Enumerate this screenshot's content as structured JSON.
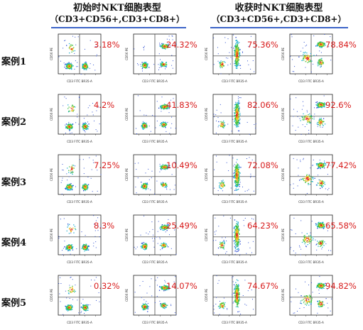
{
  "headers": {
    "initial": {
      "title": "初始时NKT细胞表型",
      "subtitle": "（CD3+CD56+,CD3+CD8+）"
    },
    "harvest": {
      "title": "收获时NKT细胞表型",
      "subtitle": "（CD3+CD56+,CD3+CD8+）"
    }
  },
  "accent_color": "#3b64c8",
  "percent_color": "#d81c1c",
  "axis_labels": {
    "x": "CD3 FITC BR35-A",
    "y": "CD56 PE"
  },
  "cases": [
    {
      "label": "案例1",
      "values": [
        "3.18%",
        "24.32%",
        "75.36%",
        "78.84%"
      ]
    },
    {
      "label": "案例2",
      "values": [
        "4.2%",
        "41.83%",
        "82.06%",
        "92.6%"
      ]
    },
    {
      "label": "案例3",
      "values": [
        "7.25%",
        "10.49%",
        "72.08%",
        "77.42%"
      ]
    },
    {
      "label": "案例4",
      "values": [
        "8.3%",
        "25.49%",
        "64.23%",
        "65.58%"
      ]
    },
    {
      "label": "案例5",
      "values": [
        "0.32%",
        "14.07%",
        "74.67%",
        "94.82%"
      ]
    }
  ]
}
